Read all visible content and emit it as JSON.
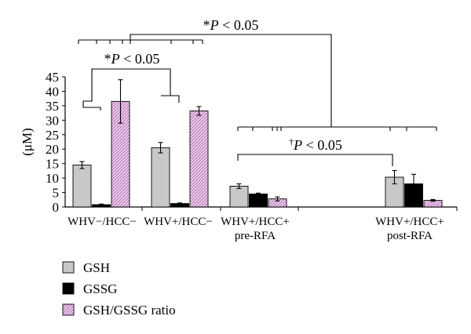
{
  "chart_data": {
    "type": "bar",
    "ylabel": "(μM)",
    "ylim": [
      0,
      45
    ],
    "yticks": [
      0,
      5,
      10,
      15,
      20,
      25,
      30,
      35,
      40,
      45
    ],
    "categories": [
      [
        "WHV−/HCC−"
      ],
      [
        "WHV+/HCC−"
      ],
      [
        "WHV+/HCC+",
        "pre-RFA"
      ],
      [
        "WHV+/HCC+",
        "post-RFA"
      ]
    ],
    "series": [
      {
        "name": "GSH",
        "color": "#c8c8c8",
        "pattern": "solid",
        "values": [
          14.5,
          20.5,
          7.2,
          10.3
        ],
        "errors": [
          1.2,
          1.8,
          0.8,
          2.3
        ]
      },
      {
        "name": "GSSG",
        "color": "#000000",
        "pattern": "solid",
        "values": [
          0.8,
          1.2,
          4.5,
          8.0
        ],
        "errors": [
          0.2,
          0.2,
          0.3,
          3.3
        ]
      },
      {
        "name": "GSH/GSSG ratio",
        "color": "#e6b4e6",
        "pattern": "hatched",
        "values": [
          36.5,
          33.2,
          2.8,
          2.3
        ],
        "errors": [
          7.5,
          1.5,
          0.7,
          0.3
        ]
      }
    ],
    "legend_position": "bottom-left",
    "annotations": [
      {
        "symbol": "*",
        "text": "P < 0.05",
        "between": [
          "WHV−/HCC−",
          "WHV+/HCC−"
        ]
      },
      {
        "symbol": "*",
        "text": "P < 0.05",
        "between": [
          "WHV−/HCC− + WHV+/HCC−",
          "WHV+/HCC+ pre-RFA + post-RFA"
        ]
      },
      {
        "symbol": "†",
        "text": "P < 0.05",
        "between": [
          "WHV+/HCC+ pre-RFA",
          "WHV+/HCC+ post-RFA"
        ]
      }
    ]
  }
}
